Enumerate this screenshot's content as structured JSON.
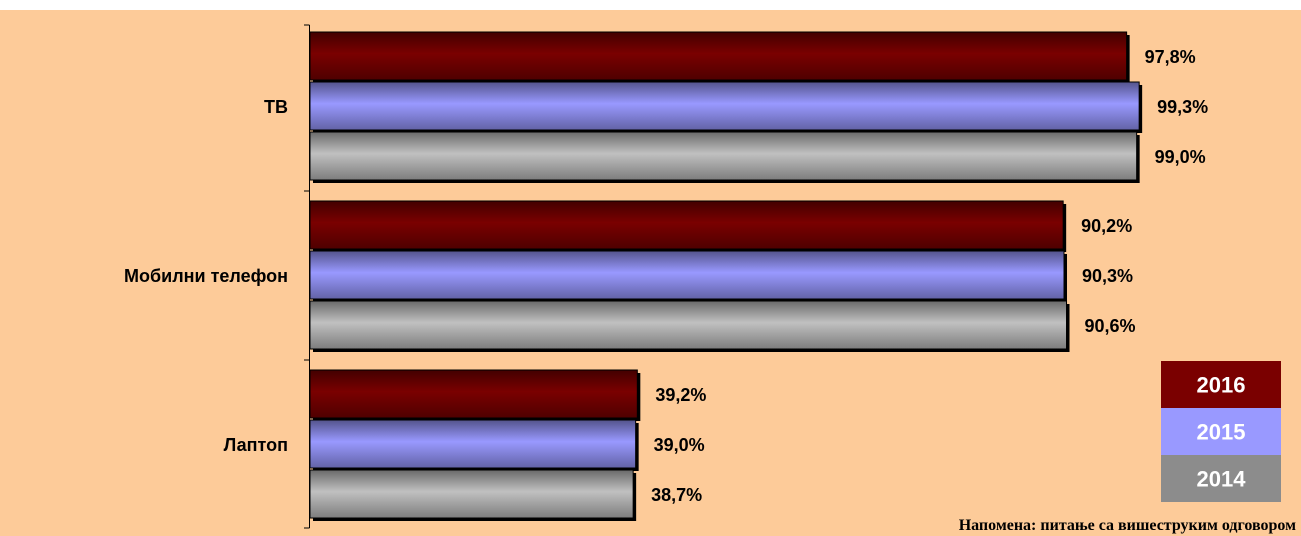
{
  "chart_data": {
    "type": "bar",
    "orientation": "horizontal",
    "categories": [
      "ТВ",
      "Мобилни телефон",
      "Лаптоп"
    ],
    "series": [
      {
        "name": "2016",
        "color": "#7a0000",
        "values": [
          97.8,
          90.2,
          39.2
        ],
        "labels": [
          "97,8%",
          "90,2%",
          "39,2%"
        ]
      },
      {
        "name": "2015",
        "color": "#9999ff",
        "values": [
          99.3,
          90.3,
          39.0
        ],
        "labels": [
          "99,3%",
          "90,3%",
          "39,0%"
        ]
      },
      {
        "name": "2014",
        "color": "#c0c0c0",
        "legend_color": "#8c8c8c",
        "values": [
          99.0,
          90.6,
          38.7
        ],
        "labels": [
          "99,0%",
          "90,6%",
          "38,7%"
        ]
      }
    ],
    "unit": "%",
    "legend_position": "bottom-right",
    "grid": false,
    "note": "Напомена: питање са вишеструким одговором"
  },
  "colors": {
    "background": "#fdcb99",
    "axis": "#000000"
  }
}
